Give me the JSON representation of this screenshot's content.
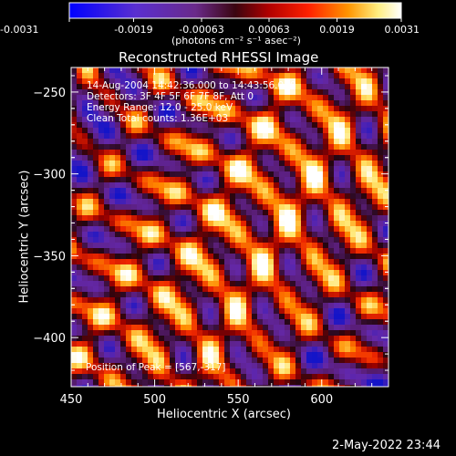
{
  "colorbar": {
    "ticks": [
      "-0.0031",
      "-0.0019",
      "-0.00063",
      "0.00063",
      "0.0019",
      "0.0031"
    ],
    "tick_values": [
      -0.0031,
      -0.0019,
      -0.00063,
      0.00063,
      0.0019,
      0.0031
    ],
    "units": "(photons cm⁻² s⁻¹ asec⁻²)",
    "range": [
      -0.0031,
      0.0031
    ],
    "colors": [
      "#0000ff",
      "#6c2bb0",
      "#5a0a1e",
      "#b30000",
      "#ff2a00",
      "#ff9a00",
      "#ffff9a",
      "#ffffff"
    ]
  },
  "chart_data": {
    "type": "heatmap",
    "title": "Reconstructed RHESSI Image",
    "xlabel": "Heliocentric X (arcsec)",
    "ylabel": "Heliocentric Y (arcsec)",
    "xlim": [
      450,
      640
    ],
    "ylim": [
      -430,
      -235
    ],
    "xticks": [
      450,
      500,
      550,
      600
    ],
    "yticks": [
      -250,
      -300,
      -350,
      -400
    ],
    "xtick_labels": [
      "450",
      "500",
      "550",
      "600"
    ],
    "ytick_labels": [
      "−250",
      "−300",
      "−350",
      "−400"
    ],
    "annotations": [
      "14-Aug-2004 14:42:36.000 to 14:43:56.000",
      "Detectors: 3F 4F 5F 6F 7F 8F, Att 0",
      "Energy Range: 12.0 - 25.0 keV",
      "Clean     Total counts: 1.36E+03"
    ],
    "peak_label": "Position of Peak = [567,-317]",
    "peak": [
      567,
      -317
    ]
  },
  "footer": {
    "timestamp": "2-May-2022 23:44"
  }
}
